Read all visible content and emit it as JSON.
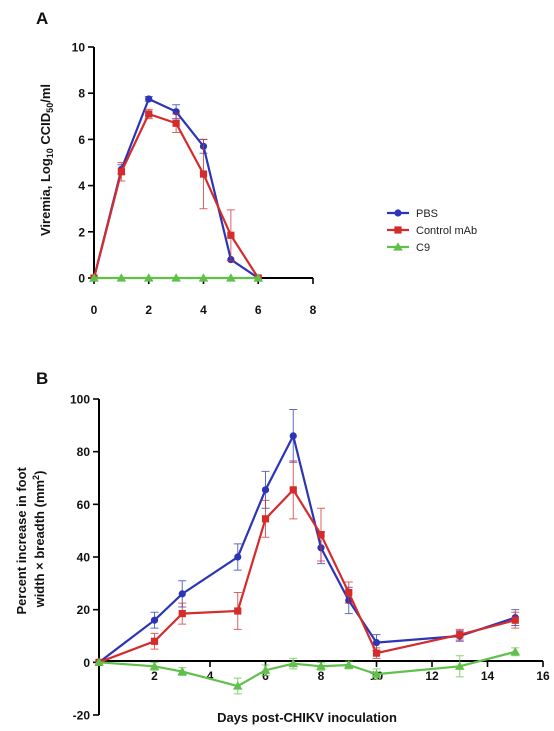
{
  "chart_data": [
    {
      "panel": "A",
      "type": "line",
      "title": "",
      "xlabel": "",
      "ylabel_parts": {
        "pre": "Viremia, Log",
        "sub1": "10",
        "mid": " CCID",
        "sub2": "50",
        "post": "/ml"
      },
      "xlim": [
        0,
        8
      ],
      "ylim": [
        0,
        10
      ],
      "xticks": [
        0,
        2,
        4,
        6,
        8
      ],
      "yticks": [
        0,
        2,
        4,
        6,
        8,
        10
      ],
      "grid": false,
      "legend_position": "right",
      "series": [
        {
          "name": "PBS",
          "color": "#2b35b5",
          "marker": "circle",
          "x": [
            0,
            1,
            2,
            3,
            4,
            5,
            6
          ],
          "y": [
            0,
            4.7,
            7.75,
            7.2,
            5.7,
            0.8,
            0
          ],
          "err": [
            0,
            0.2,
            0.1,
            0.3,
            0.3,
            0,
            0
          ]
        },
        {
          "name": "Control mAb",
          "color": "#d42b2b",
          "marker": "square",
          "x": [
            0,
            1,
            2,
            3,
            4,
            5,
            6
          ],
          "y": [
            0,
            4.6,
            7.1,
            6.7,
            4.5,
            1.85,
            0
          ],
          "err": [
            0,
            0.4,
            0.2,
            0.4,
            1.5,
            1.1,
            0
          ]
        },
        {
          "name": "C9",
          "color": "#5fc14a",
          "marker": "triangle",
          "x": [
            0,
            1,
            2,
            3,
            4,
            5,
            6
          ],
          "y": [
            0,
            0,
            0,
            0,
            0,
            0,
            0
          ],
          "err": [
            0,
            0,
            0,
            0,
            0,
            0,
            0
          ]
        }
      ]
    },
    {
      "panel": "B",
      "type": "line",
      "title": "",
      "xlabel": "Days post-CHIKV inoculation",
      "ylabel_line1": "Percent increase in foot",
      "ylabel_line2_parts": {
        "pre": "width × breadth (mm",
        "sup": "2",
        "post": ")"
      },
      "xlim": [
        0,
        16
      ],
      "ylim": [
        -20,
        100
      ],
      "xticks": [
        2,
        4,
        6,
        8,
        10,
        12,
        14,
        16
      ],
      "yticks": [
        -20,
        0,
        20,
        40,
        60,
        80,
        100
      ],
      "grid": false,
      "series": [
        {
          "name": "PBS",
          "color": "#2b35b5",
          "marker": "circle",
          "x": [
            0,
            2,
            3,
            5,
            6,
            7,
            8,
            9,
            10,
            13,
            15
          ],
          "y": [
            0,
            16,
            26,
            40,
            65.5,
            86,
            43.5,
            23.5,
            7.5,
            10,
            17
          ],
          "err": [
            0,
            3,
            5,
            5,
            7,
            10,
            6,
            5,
            3,
            2,
            3
          ]
        },
        {
          "name": "Control mAb",
          "color": "#d42b2b",
          "marker": "square",
          "x": [
            0,
            2,
            3,
            5,
            6,
            7,
            8,
            9,
            10,
            13,
            15
          ],
          "y": [
            0,
            8,
            18.5,
            19.5,
            54.5,
            65.5,
            48.5,
            26.5,
            3.5,
            10.5,
            16
          ],
          "err": [
            0,
            3,
            4,
            7,
            7,
            11,
            10,
            4,
            2,
            2,
            3
          ]
        },
        {
          "name": "C9",
          "color": "#5fc14a",
          "marker": "triangle",
          "x": [
            0,
            2,
            3,
            5,
            6,
            7,
            8,
            9,
            10,
            13,
            15
          ],
          "y": [
            0,
            -1.5,
            -3.5,
            -9,
            -3,
            -0.5,
            -1.5,
            -1,
            -4.5,
            -1.5,
            4
          ],
          "err": [
            0,
            1.5,
            1.5,
            3,
            2,
            2,
            1.5,
            1.5,
            2,
            4,
            1.5
          ]
        }
      ]
    }
  ]
}
